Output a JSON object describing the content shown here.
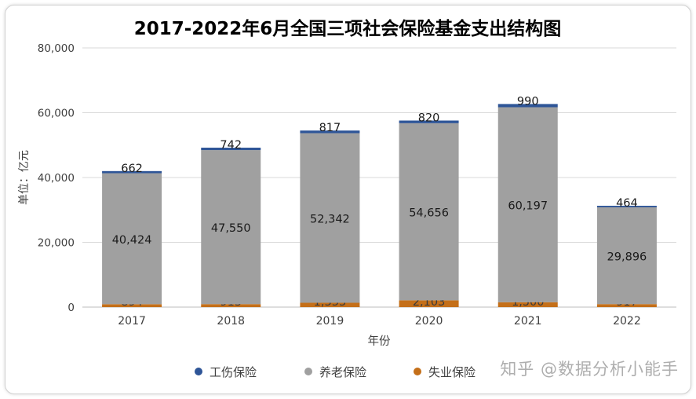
{
  "chart_data": {
    "type": "bar",
    "stacked": true,
    "title": "2017-2022年6月全国三项社会保险基金支出结构图",
    "xlabel": "年份",
    "ylabel": "单位：亿元",
    "ylim": [
      0,
      80000
    ],
    "yticks": [
      "0",
      "20,000",
      "40,000",
      "60,000",
      "80,000"
    ],
    "ytick_values": [
      0,
      20000,
      40000,
      60000,
      80000
    ],
    "grid": true,
    "legend_position": "bottom",
    "categories": [
      "2017",
      "2018",
      "2019",
      "2020",
      "2021",
      "2022"
    ],
    "series": [
      {
        "name": "失业保险",
        "color": "#c46f19",
        "values": [
          894,
          915,
          1333,
          2103,
          1500,
          917
        ],
        "labels": [
          "894",
          "915",
          "1,333",
          "2,103",
          "1,500",
          "917"
        ]
      },
      {
        "name": "养老保险",
        "color": "#a0a0a0",
        "values": [
          40424,
          47550,
          52342,
          54656,
          60197,
          29896
        ],
        "labels": [
          "40,424",
          "47,550",
          "52,342",
          "54,656",
          "60,197",
          "29,896"
        ]
      },
      {
        "name": "工伤保险",
        "color": "#2e5597",
        "values": [
          662,
          742,
          817,
          820,
          990,
          464
        ],
        "labels": [
          "662",
          "742",
          "817",
          "820",
          "990",
          "464"
        ]
      }
    ],
    "legend_order": [
      "工伤保险",
      "养老保险",
      "失业保险"
    ]
  },
  "watermark": "知乎 @数据分析小能手"
}
